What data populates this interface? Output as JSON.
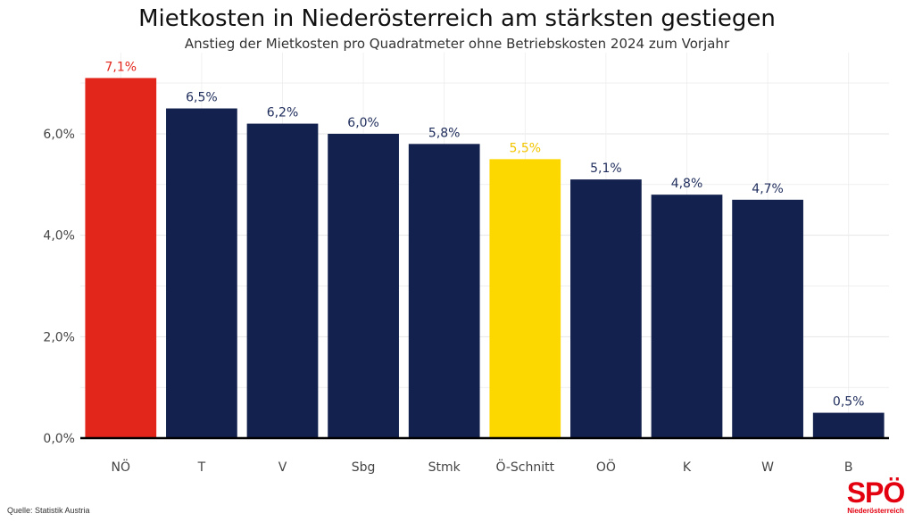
{
  "header": {
    "title": "Mietkosten in Niederösterreich am stärksten gestiegen",
    "subtitle": "Anstieg der Mietkosten pro Quadratmeter ohne Betriebskosten 2024 zum Vorjahr"
  },
  "footer": {
    "source": "Quelle: Statistik Austria"
  },
  "logo": {
    "wordmark": "SPÖ",
    "subline": "Niederösterreich",
    "color": "#e3000f"
  },
  "chart_data": {
    "type": "bar",
    "title": "Mietkosten in Niederösterreich am stärksten gestiegen",
    "subtitle": "Anstieg der Mietkosten pro Quadratmeter ohne Betriebskosten 2024 zum Vorjahr",
    "categories": [
      "NÖ",
      "T",
      "V",
      "Sbg",
      "Stmk",
      "Ö-Schnitt",
      "OÖ",
      "K",
      "W",
      "B"
    ],
    "values": [
      7.1,
      6.5,
      6.2,
      6.0,
      5.8,
      5.5,
      5.1,
      4.8,
      4.7,
      0.5
    ],
    "data_labels": [
      "7,1%",
      "6,5%",
      "6,2%",
      "6,0%",
      "5,8%",
      "5,5%",
      "5,1%",
      "4,8%",
      "4,7%",
      "0,5%"
    ],
    "bar_colors": [
      "#e3261b",
      "#13214f",
      "#13214f",
      "#13214f",
      "#13214f",
      "#fcd700",
      "#13214f",
      "#13214f",
      "#13214f",
      "#13214f"
    ],
    "label_colors": [
      "#e3261b",
      "#1f2d5c",
      "#1f2d5c",
      "#1f2d5c",
      "#1f2d5c",
      "#f2c500",
      "#1f2d5c",
      "#1f2d5c",
      "#1f2d5c",
      "#1f2d5c"
    ],
    "xlabel": "",
    "ylabel": "",
    "ylim": [
      0,
      7.6
    ],
    "yticks": [
      0,
      2,
      4,
      6
    ],
    "ytick_labels": [
      "0,0%",
      "2,0%",
      "4,0%",
      "6,0%"
    ],
    "grid": true,
    "legend": false
  }
}
